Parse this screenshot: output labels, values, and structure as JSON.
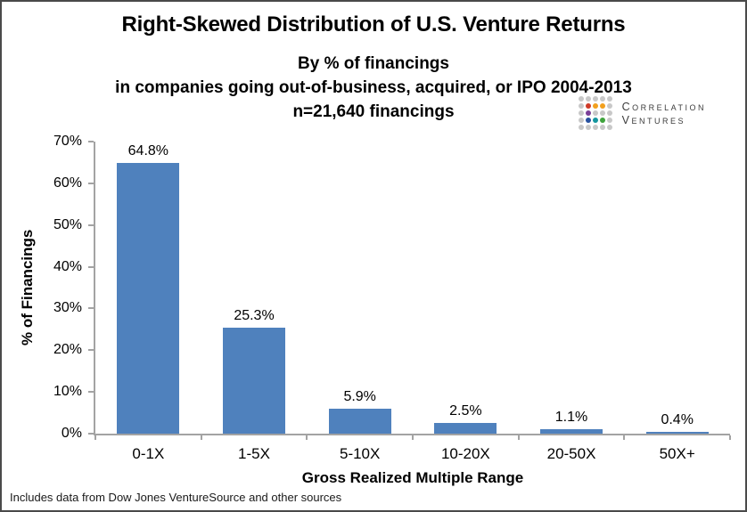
{
  "page": {
    "title": "Right-Skewed Distribution of U.S. Venture Returns",
    "subtitle_lines": [
      "By % of financings",
      "in companies going out-of-business, acquired, or IPO 2004-2013",
      "n=21,640 financings"
    ],
    "footnote": "Includes data from Dow Jones VentureSource and other sources"
  },
  "logo": {
    "line1": "Correlation",
    "line2": "Ventures",
    "text_color": "#3c3c3c",
    "dot_colors": {
      "g": "#c8c8c8",
      "r": "#cf3a28",
      "o": "#f2a01e",
      "p": "#7c3f98",
      "b": "#26509e",
      "t": "#14969e",
      "n": "#3fa33c"
    },
    "dot_grid": [
      [
        "g",
        "g",
        "g",
        "g",
        "g"
      ],
      [
        "g",
        "r",
        "o",
        "o",
        "g"
      ],
      [
        "g",
        "p",
        "g",
        "g",
        "g"
      ],
      [
        "g",
        "b",
        "t",
        "n",
        "g"
      ],
      [
        "g",
        "g",
        "g",
        "g",
        "g"
      ]
    ]
  },
  "chart_data": {
    "type": "bar",
    "title": "Right-Skewed Distribution of U.S. Venture Returns",
    "subtitle": "By % of financings in companies going out-of-business, acquired, or IPO 2004-2013, n=21,640 financings",
    "categories": [
      "0-1X",
      "1-5X",
      "5-10X",
      "10-20X",
      "20-50X",
      "50X+"
    ],
    "values": [
      64.8,
      25.3,
      5.9,
      2.5,
      1.1,
      0.4
    ],
    "value_labels": [
      "64.8%",
      "25.3%",
      "5.9%",
      "2.5%",
      "1.1%",
      "0.4%"
    ],
    "xlabel": "Gross Realized Multiple Range",
    "ylabel": "% of Financings",
    "ylim": [
      0,
      70
    ],
    "y_ticks": [
      "0%",
      "10%",
      "20%",
      "30%",
      "40%",
      "50%",
      "60%",
      "70%"
    ],
    "bar_color": "#4f81bd",
    "axis_color": "#a3a3a3",
    "grid": false,
    "legend": false,
    "source_note": "Includes data from Dow Jones VentureSource and other sources"
  }
}
